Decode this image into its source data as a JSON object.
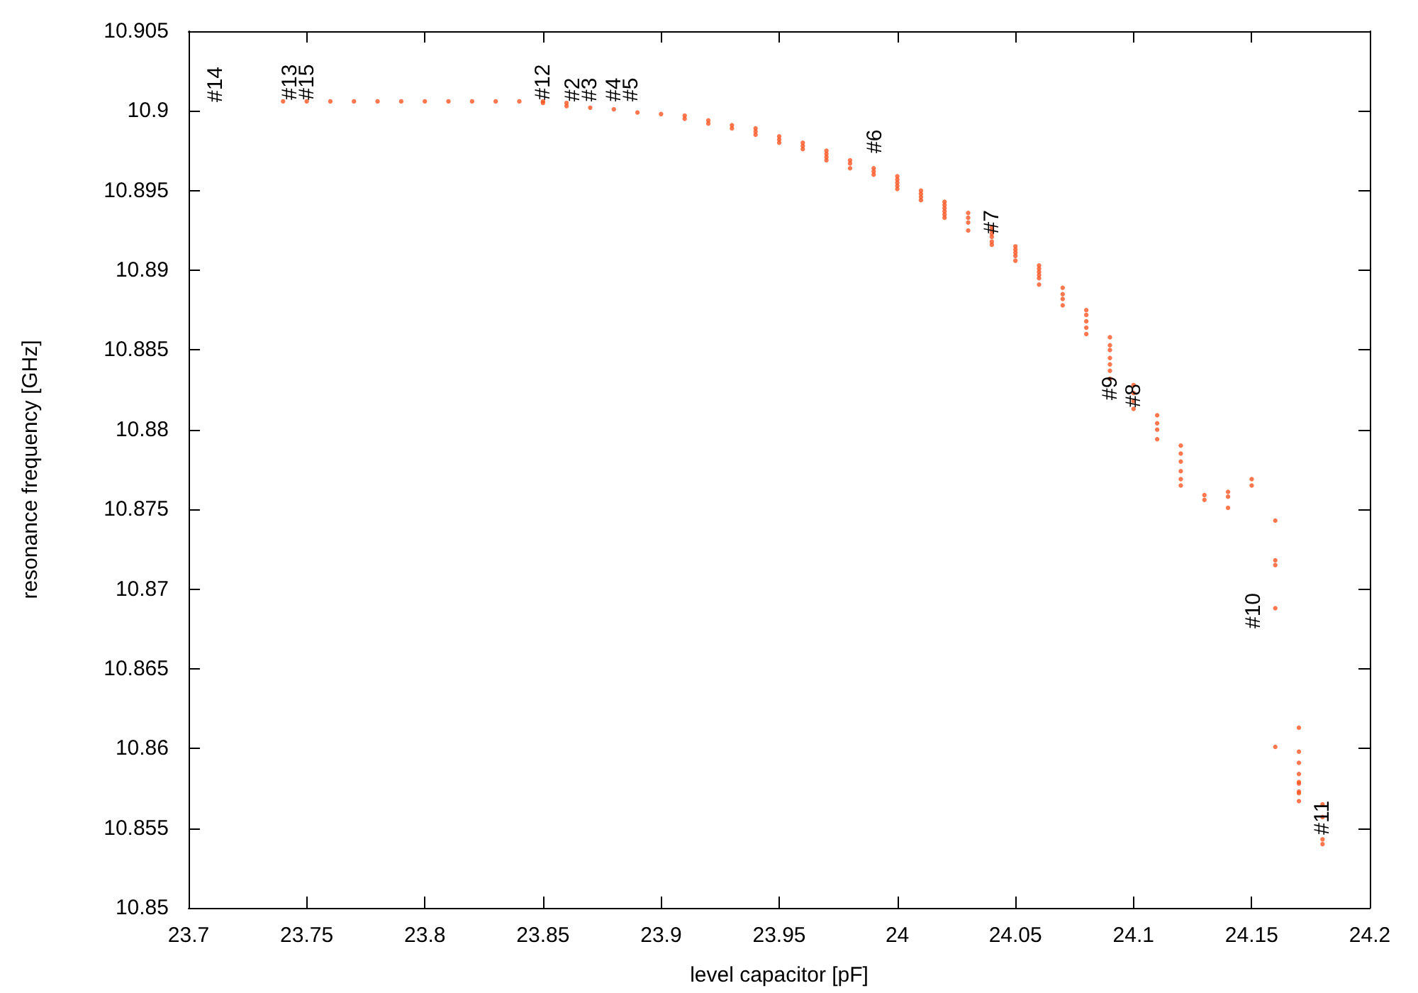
{
  "chart_data": {
    "type": "scatter",
    "xlabel": "level capacitor [pF]",
    "ylabel": "resonance frequency [GHz]",
    "color": "#ff5522",
    "marker": "circle",
    "grid": false,
    "x": [
      23.74,
      23.75,
      23.76,
      23.77,
      23.78,
      23.79,
      23.8,
      23.81,
      23.82,
      23.83,
      23.84,
      23.85,
      23.85,
      23.86,
      23.86,
      23.87,
      23.88,
      23.89,
      23.9,
      23.91,
      23.91,
      23.92,
      23.92,
      23.93,
      23.93,
      23.94,
      23.94,
      23.94,
      23.95,
      23.95,
      23.95,
      23.96,
      23.96,
      23.96,
      23.97,
      23.97,
      23.97,
      23.97,
      23.98,
      23.98,
      23.98,
      23.99,
      23.99,
      23.99,
      24,
      24,
      24,
      24,
      24,
      24.01,
      24.01,
      24.01,
      24.01,
      24.02,
      24.02,
      24.02,
      24.02,
      24.02,
      24.02,
      24.03,
      24.03,
      24.03,
      24.03,
      24.04,
      24.04,
      24.04,
      24.04,
      24.04,
      24.04,
      24.05,
      24.05,
      24.05,
      24.05,
      24.05,
      24.06,
      24.06,
      24.06,
      24.06,
      24.06,
      24.06,
      24.07,
      24.07,
      24.07,
      24.07,
      24.08,
      24.08,
      24.08,
      24.08,
      24.08,
      24.09,
      24.09,
      24.09,
      24.09,
      24.09,
      24.09,
      24.09,
      24.1,
      24.1,
      24.1,
      24.1,
      24.11,
      24.11,
      24.11,
      24.11,
      24.12,
      24.12,
      24.12,
      24.12,
      24.12,
      24.12,
      24.13,
      24.13,
      24.14,
      24.14,
      24.14,
      24.15,
      24.15,
      24.16,
      24.16,
      24.16,
      24.16,
      24.16,
      24.17,
      24.17,
      24.17,
      24.17,
      24.17,
      24.17,
      24.17,
      24.17,
      24.17,
      24.18,
      24.18,
      24.18,
      24.18
    ],
    "values": [
      10.9006,
      10.9006,
      10.9006,
      10.9006,
      10.9006,
      10.9006,
      10.9006,
      10.9006,
      10.9006,
      10.9006,
      10.9006,
      10.9006,
      10.9005,
      10.9005,
      10.9003,
      10.9002,
      10.9001,
      10.8999,
      10.8998,
      10.8997,
      10.8995,
      10.8994,
      10.8992,
      10.8991,
      10.8989,
      10.8989,
      10.8987,
      10.8985,
      10.8984,
      10.8982,
      10.898,
      10.898,
      10.8978,
      10.8976,
      10.8975,
      10.8973,
      10.8971,
      10.8969,
      10.8969,
      10.8967,
      10.8964,
      10.8964,
      10.8962,
      10.896,
      10.8959,
      10.8957,
      10.8955,
      10.8953,
      10.8951,
      10.895,
      10.8948,
      10.8946,
      10.8944,
      10.8943,
      10.8941,
      10.8939,
      10.8937,
      10.8935,
      10.8933,
      10.8936,
      10.8933,
      10.893,
      10.8925,
      10.8927,
      10.8925,
      10.8923,
      10.8921,
      10.8918,
      10.8916,
      10.8915,
      10.8913,
      10.8911,
      10.8909,
      10.8906,
      10.8903,
      10.8901,
      10.8899,
      10.8897,
      10.8895,
      10.8891,
      10.8889,
      10.8885,
      10.8882,
      10.8878,
      10.8875,
      10.8872,
      10.8868,
      10.8864,
      10.886,
      10.8858,
      10.8853,
      10.885,
      10.8845,
      10.8841,
      10.8837,
      10.8832,
      10.8828,
      10.8823,
      10.8818,
      10.8813,
      10.8809,
      10.8804,
      10.88,
      10.8794,
      10.879,
      10.8785,
      10.878,
      10.8774,
      10.8769,
      10.8765,
      10.8759,
      10.8756,
      10.8761,
      10.8758,
      10.8751,
      10.8769,
      10.8765,
      10.8743,
      10.8718,
      10.8715,
      10.8688,
      10.8601,
      10.8613,
      10.8598,
      10.8591,
      10.8584,
      10.8579,
      10.8578,
      10.8573,
      10.8572,
      10.8567,
      10.8565,
      10.8557,
      10.8543,
      10.854
    ],
    "xlim": [
      23.7,
      24.2
    ],
    "xticks": [
      23.7,
      23.75,
      23.8,
      23.85,
      23.9,
      23.95,
      24,
      24.05,
      24.1,
      24.15,
      24.2
    ],
    "ylim": [
      10.85,
      10.905
    ],
    "yticks": [
      10.85,
      10.855,
      10.86,
      10.865,
      10.87,
      10.875,
      10.88,
      10.885,
      10.89,
      10.895,
      10.9,
      10.905
    ],
    "annotations": [
      "#14",
      {
        "text": "#13",
        "x": 23.75,
        "y": 10.9007
      },
      {
        "text": "#15",
        "x": 23.75,
        "y": 10.9007
      },
      {
        "text": "#12",
        "x": 23.85,
        "y": 10.9007
      },
      {
        "text": "#2",
        "x": 23.87,
        "y": 10.9006
      },
      {
        "text": "#3",
        "x": 23.87,
        "y": 10.9006
      },
      {
        "text": "#4",
        "x": 23.88,
        "y": 10.9006
      },
      {
        "text": "#5",
        "x": 23.88,
        "y": 10.9006
      },
      "#6",
      {
        "text": "#7",
        "x": 24.04,
        "y": 10.8923
      },
      "#9",
      {
        "text": "#8",
        "x": 24.1,
        "y": 10.8814
      },
      "#10",
      {
        "text": "#11",
        "x": 24.18,
        "y": 10.8546
      }
    ]
  }
}
